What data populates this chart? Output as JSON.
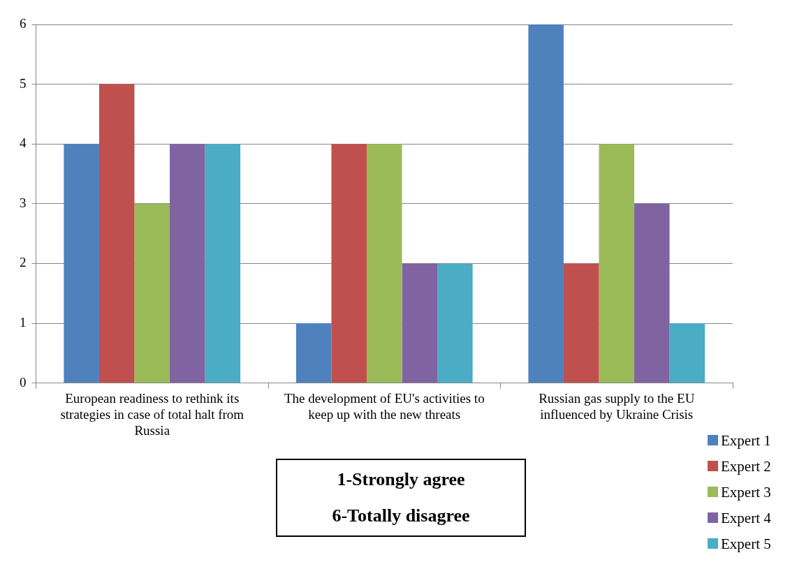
{
  "chart_data": {
    "type": "bar",
    "categories": [
      "European readiness to rethink its strategies in case of total halt from Russia",
      "The development of EU's activities to keep up with the new threats",
      "Russian gas supply to the EU influenced by Ukraine Crisis"
    ],
    "series": [
      {
        "name": "Expert 1",
        "color": "#4f81bd",
        "values": [
          4,
          1,
          6
        ]
      },
      {
        "name": "Expert 2",
        "color": "#c0504d",
        "values": [
          5,
          4,
          2
        ]
      },
      {
        "name": "Expert 3",
        "color": "#9bbb59",
        "values": [
          3,
          4,
          4
        ]
      },
      {
        "name": "Expert 4",
        "color": "#8064a2",
        "values": [
          4,
          2,
          3
        ]
      },
      {
        "name": "Expert 5",
        "color": "#4bacc6",
        "values": [
          4,
          2,
          1
        ]
      }
    ],
    "ylim": [
      0,
      6
    ],
    "yticks": [
      0,
      1,
      2,
      3,
      4,
      5,
      6
    ],
    "grid": "y",
    "legend": "bottom right",
    "annotations": [
      "1-Strongly agree",
      "6-Totally disagree"
    ]
  }
}
